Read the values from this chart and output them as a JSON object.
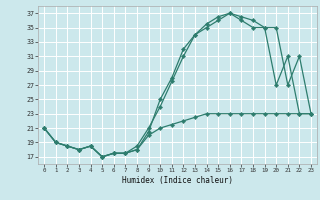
{
  "xlabel": "Humidex (Indice chaleur)",
  "bg_color": "#cce8ec",
  "grid_color": "#ffffff",
  "line_color": "#2e7d6e",
  "xlim": [
    -0.5,
    23.5
  ],
  "ylim": [
    16,
    38
  ],
  "yticks": [
    17,
    19,
    21,
    23,
    25,
    27,
    29,
    31,
    33,
    35,
    37
  ],
  "xticks": [
    0,
    1,
    2,
    3,
    4,
    5,
    6,
    7,
    8,
    9,
    10,
    11,
    12,
    13,
    14,
    15,
    16,
    17,
    18,
    19,
    20,
    21,
    22,
    23
  ],
  "curve1_x": [
    0,
    1,
    2,
    3,
    4,
    5,
    6,
    7,
    8,
    9,
    10,
    11,
    12,
    13,
    14,
    15,
    16,
    17,
    18,
    19,
    20,
    21,
    22,
    23
  ],
  "curve1_y": [
    21,
    19,
    18.5,
    18,
    18.5,
    17,
    17.5,
    17.5,
    18,
    20.5,
    25,
    28,
    32,
    34,
    35,
    36,
    37,
    36,
    35,
    35,
    27,
    31,
    23,
    23
  ],
  "curve2_x": [
    0,
    1,
    2,
    3,
    4,
    5,
    6,
    7,
    8,
    9,
    10,
    11,
    12,
    13,
    14,
    15,
    16,
    17,
    18,
    19,
    20,
    21,
    22,
    23
  ],
  "curve2_y": [
    21,
    19,
    18.5,
    18,
    18.5,
    17,
    17.5,
    17.5,
    18.5,
    21,
    24,
    27.5,
    31,
    34,
    35.5,
    36.5,
    37,
    36.5,
    36,
    35,
    35,
    27,
    31,
    23
  ],
  "curve3_x": [
    0,
    1,
    2,
    3,
    4,
    5,
    6,
    7,
    8,
    9,
    10,
    11,
    12,
    13,
    14,
    15,
    16,
    17,
    18,
    19,
    20,
    21,
    22,
    23
  ],
  "curve3_y": [
    21,
    19,
    18.5,
    18,
    18.5,
    17,
    17.5,
    17.5,
    18,
    20,
    21,
    21.5,
    22,
    22.5,
    23,
    23,
    23,
    23,
    23,
    23,
    23,
    23,
    23,
    23
  ]
}
